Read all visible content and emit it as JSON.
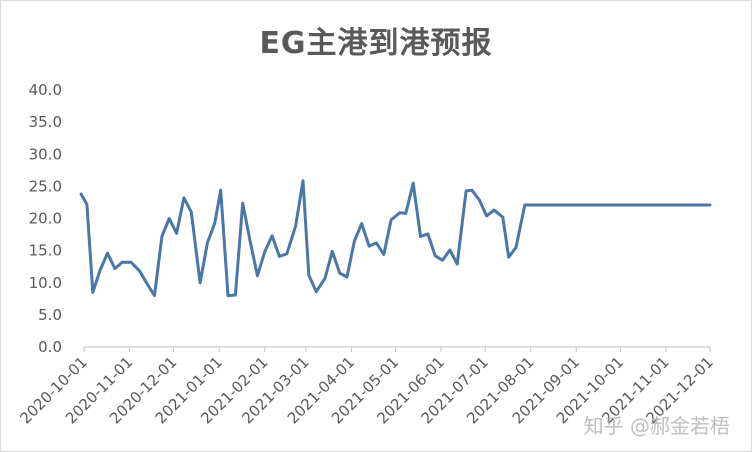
{
  "chart_data": {
    "type": "line",
    "title": "EG主港到港预报",
    "xlabel": "",
    "ylabel": "",
    "ylim": [
      0,
      40
    ],
    "yticks": [
      "0.0",
      "5.0",
      "10.0",
      "15.0",
      "20.0",
      "25.0",
      "30.0",
      "35.0",
      "40.0"
    ],
    "xticks": [
      "2020-10-01",
      "2020-11-01",
      "2020-12-01",
      "2021-01-01",
      "2021-02-01",
      "2021-03-01",
      "2021-04-01",
      "2021-05-01",
      "2021-06-01",
      "2021-07-01",
      "2021-08-01",
      "2021-09-01",
      "2021-10-01",
      "2021-11-01",
      "2021-12-01"
    ],
    "xlim": [
      "2020-10-01",
      "2021-12-01"
    ],
    "grid": false,
    "legend": "none",
    "line_color": "#4a76a8",
    "series": [
      {
        "x": [
          "2020-09-29",
          "2020-10-03",
          "2020-10-07",
          "2020-10-12",
          "2020-10-17",
          "2020-10-22",
          "2020-10-27",
          "2020-11-02",
          "2020-11-08",
          "2020-11-13",
          "2020-11-18",
          "2020-11-23",
          "2020-11-28",
          "2020-12-03",
          "2020-12-08",
          "2020-12-13",
          "2020-12-19",
          "2020-12-24",
          "2020-12-29",
          "2021-01-02",
          "2021-01-07",
          "2021-01-12",
          "2021-01-17",
          "2021-01-22",
          "2021-01-27",
          "2021-02-01",
          "2021-02-06",
          "2021-02-11",
          "2021-02-16",
          "2021-02-22",
          "2021-02-27",
          "2021-03-03",
          "2021-03-08",
          "2021-03-14",
          "2021-03-19",
          "2021-03-24",
          "2021-03-29",
          "2021-04-03",
          "2021-04-08",
          "2021-04-13",
          "2021-04-18",
          "2021-04-23",
          "2021-04-28",
          "2021-05-04",
          "2021-05-08",
          "2021-05-13",
          "2021-05-18",
          "2021-05-23",
          "2021-05-28",
          "2021-06-02",
          "2021-06-07",
          "2021-06-12",
          "2021-06-18",
          "2021-06-22",
          "2021-06-27",
          "2021-07-02",
          "2021-07-07",
          "2021-07-13",
          "2021-07-17",
          "2021-07-22",
          "2021-07-28",
          "2021-08-02",
          "2021-08-07",
          "2021-08-12",
          "2021-08-17",
          "2021-08-22",
          "2021-08-28",
          "2021-09-02",
          "2021-09-07",
          "2021-09-12",
          "2021-09-17",
          "2021-09-22",
          "2021-09-27",
          "2021-10-02",
          "2021-10-07",
          "2021-10-12",
          "2021-10-17",
          "2021-10-22",
          "2021-10-27",
          "2021-11-01",
          "2021-11-06",
          "2021-11-11",
          "2021-11-16",
          "2021-11-21",
          "2021-11-26",
          "2021-12-01"
        ],
        "values": [
          23.8,
          22.2,
          8.5,
          12.0,
          14.6,
          12.2,
          13.2,
          13.2,
          11.8,
          9.8,
          8.0,
          17.2,
          20.0,
          17.7,
          23.2,
          21.0,
          10.0,
          16.2,
          19.3,
          24.4,
          8.0,
          8.1,
          22.4,
          16.5,
          11.1,
          14.8,
          17.3,
          14.1,
          14.5,
          18.8,
          25.9,
          11.2,
          8.6,
          10.7,
          14.9,
          11.5,
          10.9,
          16.5,
          19.2,
          15.7,
          16.2,
          14.4,
          19.8,
          20.9,
          20.8,
          25.5,
          17.2,
          17.6,
          14.2,
          13.5,
          15.1,
          12.9,
          24.3,
          24.4,
          22.9,
          20.4,
          21.3,
          20.2,
          14.0,
          15.5,
          22.1,
          22.1,
          22.1,
          22.1,
          22.1,
          22.1,
          22.1,
          22.1,
          22.1,
          22.1,
          22.1,
          22.1,
          22.1,
          22.1,
          22.1,
          22.1,
          22.1,
          22.1,
          22.1,
          22.1,
          22.1,
          22.1,
          22.1,
          22.1,
          22.1,
          22.1
        ]
      }
    ]
  },
  "watermark": "知乎 @郝金若梧"
}
